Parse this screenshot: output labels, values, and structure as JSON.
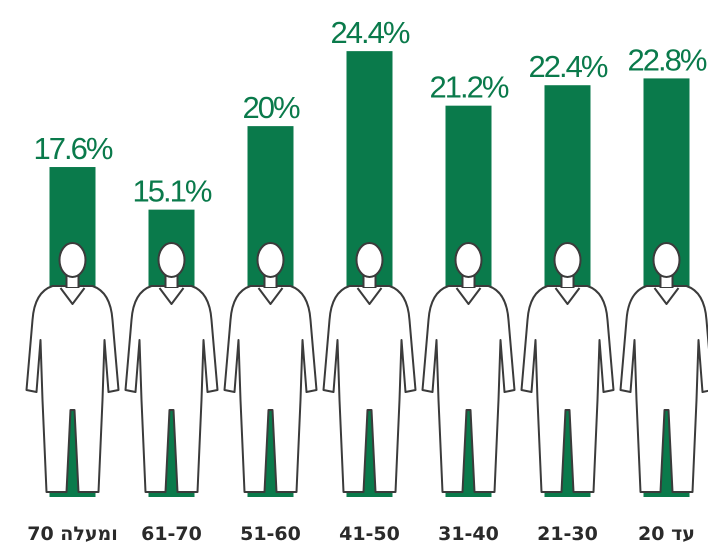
{
  "chart_data": {
    "type": "bar",
    "categories": [
      "70 ומעלה",
      "61-70",
      "51-60",
      "41-50",
      "31-40",
      "21-30",
      "עד 20"
    ],
    "values": [
      17.6,
      15.1,
      20,
      24.4,
      21.2,
      22.4,
      22.8
    ],
    "value_labels": [
      "17.6%",
      "15.1%",
      "20%",
      "24.4%",
      "21.2%",
      "22.4%",
      "22.8%"
    ],
    "color": "#0a7a4b",
    "ylim": [
      0,
      27.4
    ]
  }
}
